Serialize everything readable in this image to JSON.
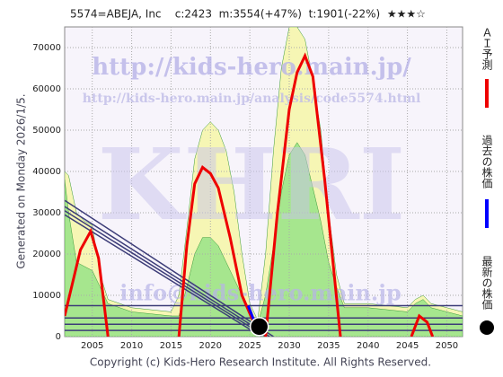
{
  "chart_data": {
    "type": "line",
    "title": "5574=ABEJA, Inc    c:2423  m:3554(+47%)  t:1901(-22%)  ★★★☆",
    "y_label": "Generated on Monday 2026/1/5.",
    "footer": "Copyright (c) Kids-Hero Research Institute. All Rights Reserved.",
    "annotations": [
      "http://kids-hero.main.jp/",
      "http://kids-hero.main.jp/analysis/code5574.html",
      "KHRI",
      "info@kids-hero.main.jp"
    ],
    "xlim": [
      2001.5,
      2052
    ],
    "xticks": [
      2005,
      2010,
      2015,
      2020,
      2025,
      2030,
      2035,
      2040,
      2045,
      2050
    ],
    "ylim": [
      0,
      75000
    ],
    "yticks": [
      0,
      10000,
      20000,
      30000,
      40000,
      50000,
      60000,
      70000
    ],
    "grid": true,
    "areas": [
      {
        "color": "#f6f6b4",
        "x": [
          2001.5,
          2002,
          2003,
          2004,
          2005,
          2006,
          2007,
          2010,
          2015,
          2016,
          2017,
          2018,
          2019,
          2020,
          2021,
          2022,
          2023,
          2024,
          2025,
          2026,
          2027,
          2028,
          2029,
          2030,
          2031,
          2032,
          2033,
          2034,
          2035,
          2036,
          2037,
          2040,
          2045,
          2046,
          2047,
          2048,
          2050,
          2052
        ],
        "values": [
          40000,
          39000,
          30000,
          28000,
          27000,
          15000,
          9000,
          7000,
          6000,
          10000,
          26000,
          43000,
          50000,
          52000,
          50000,
          45000,
          35000,
          20000,
          8000,
          4000,
          20000,
          45000,
          65000,
          75000,
          75000,
          72000,
          62000,
          50000,
          30000,
          15000,
          8000,
          8000,
          7000,
          9000,
          10000,
          8000,
          7000,
          6000
        ]
      },
      {
        "color": "#a6e68e",
        "x": [
          2001.5,
          2002,
          2003,
          2004,
          2005,
          2006,
          2007,
          2010,
          2015,
          2016,
          2017,
          2018,
          2019,
          2020,
          2021,
          2022,
          2023,
          2024,
          2025,
          2026,
          2027,
          2028,
          2029,
          2030,
          2031,
          2032,
          2033,
          2034,
          2035,
          2036,
          2037,
          2040,
          2045,
          2046,
          2047,
          2048,
          2050,
          2052
        ],
        "values": [
          38000,
          30000,
          18000,
          17000,
          16000,
          12000,
          8000,
          6000,
          5000,
          5000,
          12000,
          20000,
          24000,
          24000,
          22000,
          18000,
          14000,
          10000,
          5000,
          3000,
          10000,
          22000,
          35000,
          44000,
          47000,
          44000,
          36000,
          28000,
          18000,
          12000,
          7000,
          7000,
          6000,
          8000,
          9000,
          7000,
          6000,
          5000
        ]
      }
    ],
    "trend_color": "#3c3c78",
    "trend_lines": [
      {
        "x": [
          2001.5,
          2028
        ],
        "values": [
          33000,
          0
        ]
      },
      {
        "x": [
          2001.5,
          2027.5
        ],
        "values": [
          31500,
          0
        ]
      },
      {
        "x": [
          2001.5,
          2027
        ],
        "values": [
          30500,
          0
        ]
      },
      {
        "x": [
          2001.5,
          2026.5
        ],
        "values": [
          29500,
          0
        ]
      },
      {
        "x": [
          2001.5,
          2052
        ],
        "values": [
          7500,
          7500
        ]
      },
      {
        "x": [
          2001.5,
          2052
        ],
        "values": [
          4500,
          4500
        ]
      },
      {
        "x": [
          2001.5,
          2052
        ],
        "values": [
          3000,
          3000
        ]
      },
      {
        "x": [
          2001.5,
          2052
        ],
        "values": [
          1500,
          1500
        ]
      }
    ],
    "series": [
      {
        "name": "ＡＩ予測",
        "color": "#ee0000",
        "x": [
          2001.5,
          2002.5,
          2003.5,
          2004.8,
          2005.8,
          2007,
          2010,
          2016,
          2017,
          2018,
          2019,
          2020,
          2021,
          2022.5,
          2024,
          2025.7,
          2026.5,
          2027,
          2028.5,
          2030,
          2031,
          2032,
          2033,
          2034.5,
          2036.5,
          2040,
          2045.5,
          2046.5,
          2047.5,
          2048.2
        ],
        "values": [
          5000,
          13000,
          21000,
          25500,
          19000,
          0,
          null,
          0,
          22000,
          37000,
          41000,
          39500,
          36000,
          24000,
          10000,
          2500,
          null,
          0,
          30000,
          55000,
          64000,
          68000,
          63000,
          38000,
          0,
          null,
          0,
          5000,
          3500,
          0
        ]
      },
      {
        "name": "過去の株価",
        "color": "#0000ff",
        "x": [
          2024.8,
          2025.3,
          2025.8
        ],
        "values": [
          7500,
          5000,
          2500
        ]
      },
      {
        "name": "最新の株価",
        "color": "#000000",
        "marker": "circle",
        "x": [
          2026.2
        ],
        "values": [
          2423
        ]
      }
    ]
  }
}
